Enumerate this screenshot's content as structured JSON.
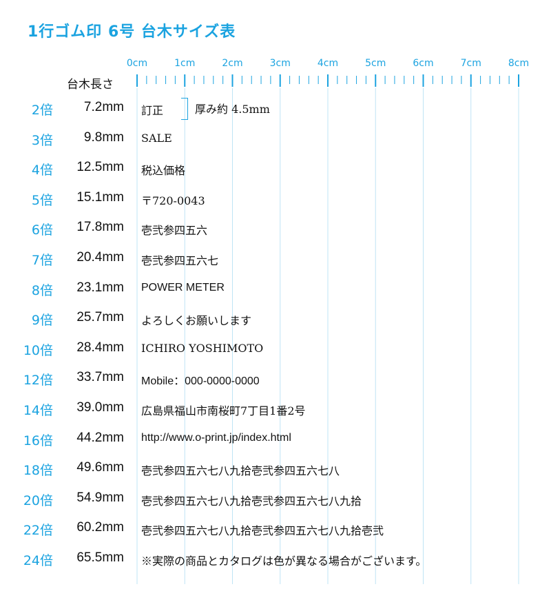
{
  "title": "1行ゴム印 6号 台木サイズ表",
  "ruler": {
    "labels": [
      "0cm",
      "1cm",
      "2cm",
      "3cm",
      "4cm",
      "5cm",
      "6cm",
      "7cm",
      "8cm"
    ],
    "accent_color": "#1ba3e0"
  },
  "length_header": "台木長さ",
  "thickness_note": "厚み約 4.5mm",
  "rows": [
    {
      "multiplier": "2倍",
      "length": "7.2mm",
      "sample": "訂正"
    },
    {
      "multiplier": "3倍",
      "length": "9.8mm",
      "sample": "SALE"
    },
    {
      "multiplier": "4倍",
      "length": "12.5mm",
      "sample": "税込価格"
    },
    {
      "multiplier": "5倍",
      "length": "15.1mm",
      "sample": "〒720-0043"
    },
    {
      "multiplier": "6倍",
      "length": "17.8mm",
      "sample": "壱弐参四五六"
    },
    {
      "multiplier": "7倍",
      "length": "20.4mm",
      "sample": "壱弐参四五六七"
    },
    {
      "multiplier": "8倍",
      "length": "23.1mm",
      "sample": "POWER METER"
    },
    {
      "multiplier": "9倍",
      "length": "25.7mm",
      "sample": "よろしくお願いします"
    },
    {
      "multiplier": "10倍",
      "length": "28.4mm",
      "sample": "ICHIRO YOSHIMOTO"
    },
    {
      "multiplier": "12倍",
      "length": "33.7mm",
      "sample": "Mobile：000-0000-0000"
    },
    {
      "multiplier": "14倍",
      "length": "39.0mm",
      "sample": "広島県福山市南桜町7丁目1番2号"
    },
    {
      "multiplier": "16倍",
      "length": "44.2mm",
      "sample": "http://www.o-print.jp/index.html"
    },
    {
      "multiplier": "18倍",
      "length": "49.6mm",
      "sample": "壱弐参四五六七八九拾壱弐参四五六七八"
    },
    {
      "multiplier": "20倍",
      "length": "54.9mm",
      "sample": "壱弐参四五六七八九拾壱弐参四五六七八九拾"
    },
    {
      "multiplier": "22倍",
      "length": "60.2mm",
      "sample": "壱弐参四五六七八九拾壱弐参四五六七八九拾壱弐"
    },
    {
      "multiplier": "24倍",
      "length": "65.5mm",
      "sample": "※実際の商品とカタログは色が異なる場合がございます。"
    }
  ]
}
